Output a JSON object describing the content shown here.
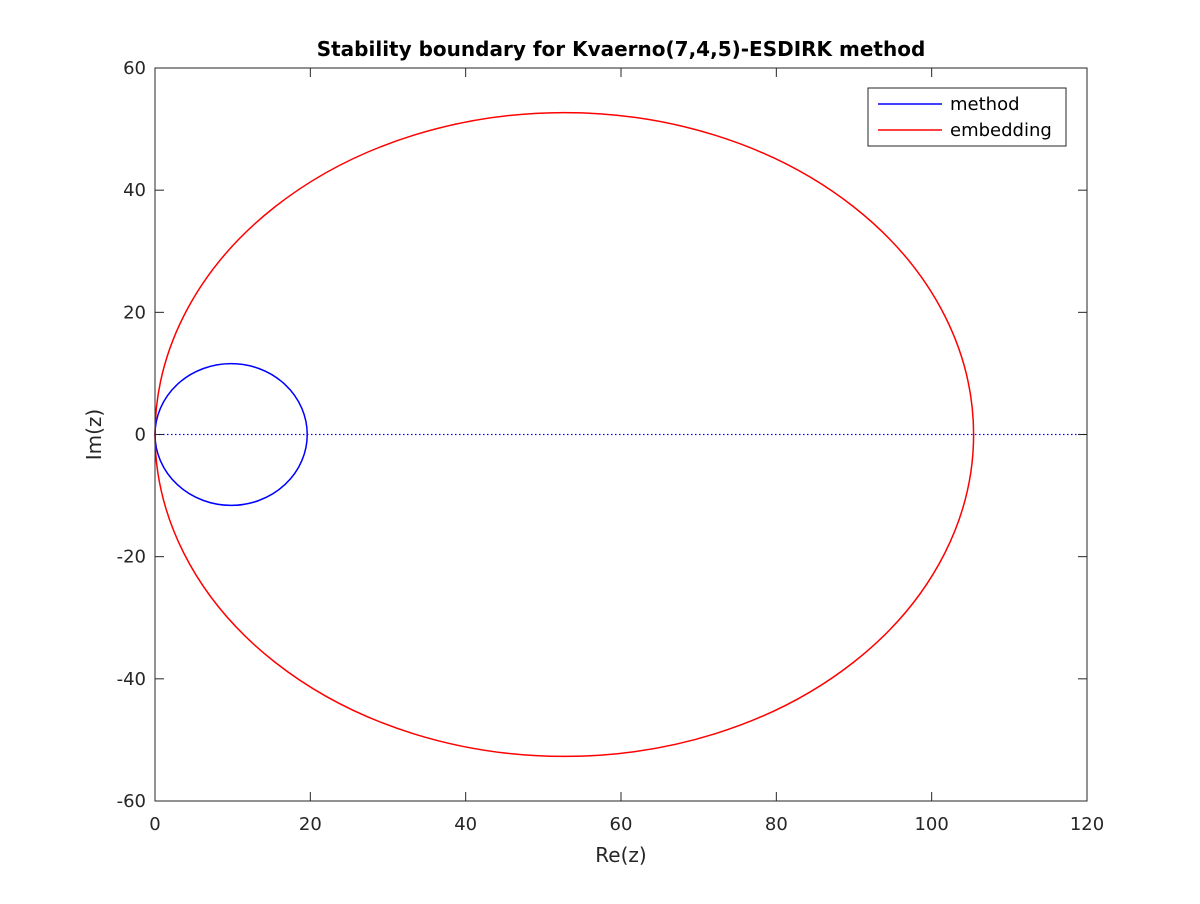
{
  "chart_data": {
    "type": "line",
    "title": "Stability boundary for Kvaerno(7,4,5)-ESDIRK method",
    "xlabel": "Re(z)",
    "ylabel": "Im(z)",
    "xlim": [
      0,
      120
    ],
    "ylim": [
      -60,
      60
    ],
    "xticks": [
      0,
      20,
      40,
      60,
      80,
      100,
      120
    ],
    "yticks": [
      -60,
      -40,
      -20,
      0,
      20,
      40,
      60
    ],
    "xtick_labels": [
      "0",
      "20",
      "40",
      "60",
      "80",
      "100",
      "120"
    ],
    "ytick_labels": [
      "-60",
      "-40",
      "-20",
      "0",
      "20",
      "40",
      "60"
    ],
    "grid": false,
    "legend_position": "top-right",
    "series": [
      {
        "name": "method",
        "color": "#0000ff",
        "shape": "ellipse",
        "center": [
          9.8,
          0
        ],
        "semi_axes": [
          9.8,
          11.6
        ]
      },
      {
        "name": "embedding",
        "color": "#ff0000",
        "shape": "ellipse",
        "center": [
          52.7,
          0
        ],
        "semi_axes": [
          52.7,
          52.7
        ]
      }
    ],
    "reference_line": {
      "y": 0,
      "x_range": [
        0,
        120
      ],
      "style": "dotted",
      "color": "#0000ff"
    }
  },
  "colors": {
    "axis": "#262626",
    "background": "#ffffff"
  }
}
